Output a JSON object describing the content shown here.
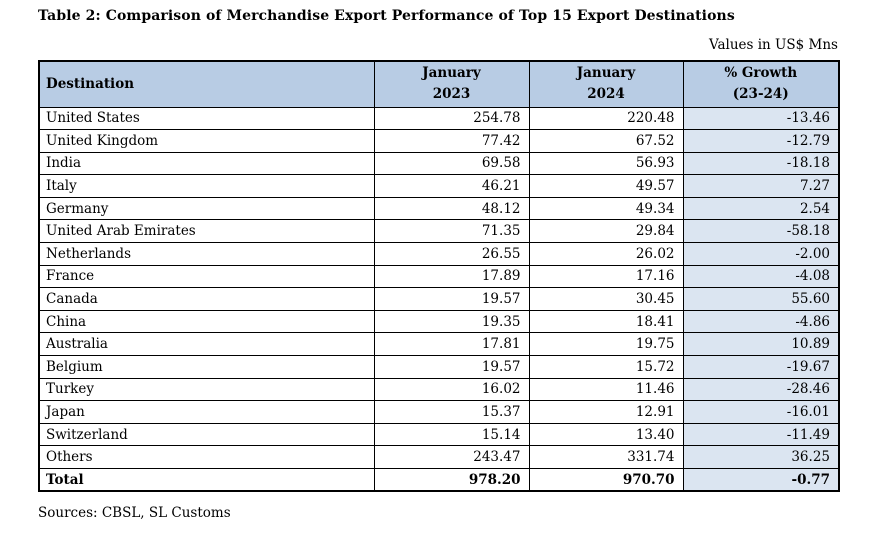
{
  "page": {
    "title": "Table 2: Comparison of Merchandise Export Performance of Top 15 Export Destinations",
    "units_note": "Values in US$ Mns",
    "source_note": "Sources: CBSL, SL Customs"
  },
  "colors": {
    "header_bg": "#b8cce4",
    "growth_column_bg": "#dbe5f1",
    "border": "#000000",
    "page_bg": "#ffffff"
  },
  "table": {
    "columns": [
      {
        "id": "destination",
        "line1": "Destination",
        "line2": ""
      },
      {
        "id": "jan2023",
        "line1": "January",
        "line2": "2023"
      },
      {
        "id": "jan2024",
        "line1": "January",
        "line2": "2024"
      },
      {
        "id": "growth",
        "line1": "% Growth",
        "line2": "(23-24)"
      }
    ],
    "rows": [
      {
        "destination": "United States",
        "jan2023": "254.78",
        "jan2024": "220.48",
        "growth": "-13.46"
      },
      {
        "destination": "United Kingdom",
        "jan2023": "77.42",
        "jan2024": "67.52",
        "growth": "-12.79"
      },
      {
        "destination": "India",
        "jan2023": "69.58",
        "jan2024": "56.93",
        "growth": "-18.18"
      },
      {
        "destination": "Italy",
        "jan2023": "46.21",
        "jan2024": "49.57",
        "growth": "7.27"
      },
      {
        "destination": "Germany",
        "jan2023": "48.12",
        "jan2024": "49.34",
        "growth": "2.54"
      },
      {
        "destination": "United Arab Emirates",
        "jan2023": "71.35",
        "jan2024": "29.84",
        "growth": "-58.18"
      },
      {
        "destination": "Netherlands",
        "jan2023": "26.55",
        "jan2024": "26.02",
        "growth": "-2.00"
      },
      {
        "destination": "France",
        "jan2023": "17.89",
        "jan2024": "17.16",
        "growth": "-4.08"
      },
      {
        "destination": "Canada",
        "jan2023": "19.57",
        "jan2024": "30.45",
        "growth": "55.60"
      },
      {
        "destination": "China",
        "jan2023": "19.35",
        "jan2024": "18.41",
        "growth": "-4.86"
      },
      {
        "destination": "Australia",
        "jan2023": "17.81",
        "jan2024": "19.75",
        "growth": "10.89"
      },
      {
        "destination": "Belgium",
        "jan2023": "19.57",
        "jan2024": "15.72",
        "growth": "-19.67"
      },
      {
        "destination": "Turkey",
        "jan2023": "16.02",
        "jan2024": "11.46",
        "growth": "-28.46"
      },
      {
        "destination": "Japan",
        "jan2023": "15.37",
        "jan2024": "12.91",
        "growth": "-16.01"
      },
      {
        "destination": "Switzerland",
        "jan2023": "15.14",
        "jan2024": "13.40",
        "growth": "-11.49"
      },
      {
        "destination": "Others",
        "jan2023": "243.47",
        "jan2024": "331.74",
        "growth": "36.25"
      }
    ],
    "total_row": {
      "destination": "Total",
      "jan2023": "978.20",
      "jan2024": "970.70",
      "growth": "-0.77"
    }
  },
  "chart_data": {
    "type": "table",
    "title": "Table 2: Comparison of Merchandise Export Performance of Top 15 Export Destinations",
    "units": "Values in US$ Mns",
    "columns": [
      "Destination",
      "January 2023",
      "January 2024",
      "% Growth (23-24)"
    ],
    "categories": [
      "United States",
      "United Kingdom",
      "India",
      "Italy",
      "Germany",
      "United Arab Emirates",
      "Netherlands",
      "France",
      "Canada",
      "China",
      "Australia",
      "Belgium",
      "Turkey",
      "Japan",
      "Switzerland",
      "Others",
      "Total"
    ],
    "series": [
      {
        "name": "January 2023",
        "values": [
          254.78,
          77.42,
          69.58,
          46.21,
          48.12,
          71.35,
          26.55,
          17.89,
          19.57,
          19.35,
          17.81,
          19.57,
          16.02,
          15.37,
          15.14,
          243.47,
          978.2
        ]
      },
      {
        "name": "January 2024",
        "values": [
          220.48,
          67.52,
          56.93,
          49.57,
          49.34,
          29.84,
          26.02,
          17.16,
          30.45,
          18.41,
          19.75,
          15.72,
          11.46,
          12.91,
          13.4,
          331.74,
          970.7
        ]
      },
      {
        "name": "% Growth (23-24)",
        "values": [
          -13.46,
          -12.79,
          -18.18,
          7.27,
          2.54,
          -58.18,
          -2.0,
          -4.08,
          55.6,
          -4.86,
          10.89,
          -19.67,
          -28.46,
          -16.01,
          -11.49,
          36.25,
          -0.77
        ]
      }
    ],
    "source": "Sources: CBSL, SL Customs"
  }
}
